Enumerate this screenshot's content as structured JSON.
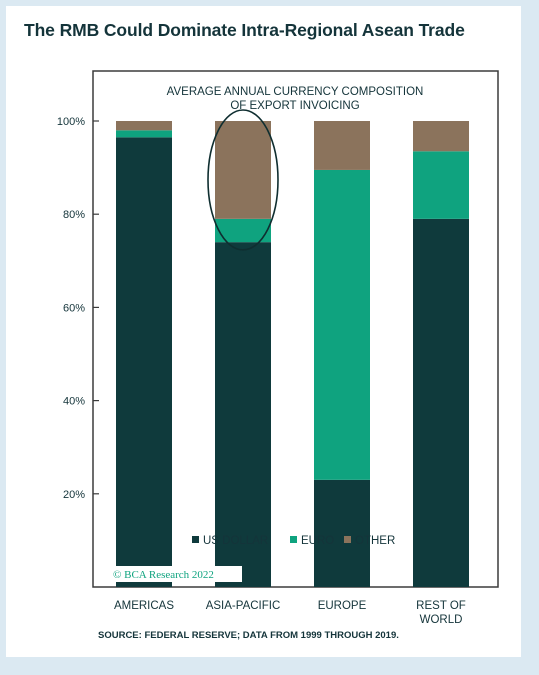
{
  "headline": "The RMB Could Dominate Intra-Regional Asean Trade",
  "source": "SOURCE: FEDERAL RESERVE; DATA FROM 1999 THROUGH 2019.",
  "watermark": "© BCA Research 2022",
  "colors": {
    "us_dollar": "#0f3a3c",
    "euro": "#0fa37f",
    "other": "#8b735c",
    "text": "#14343a",
    "background": "#dbe9f2"
  },
  "chart_data": {
    "type": "bar",
    "stacked": true,
    "title": "AVERAGE ANNUAL CURRENCY COMPOSITION",
    "subtitle": "OF EXPORT INVOICING",
    "categories": [
      [
        "AMERICAS"
      ],
      [
        "ASIA-PACIFIC"
      ],
      [
        "EUROPE"
      ],
      [
        "REST OF",
        "WORLD"
      ]
    ],
    "series": [
      {
        "name": "US DOLLAR",
        "color": "#0f3a3c",
        "values": [
          96.5,
          74,
          23,
          79
        ]
      },
      {
        "name": "EURO",
        "color": "#0fa37f",
        "values": [
          1.5,
          5,
          66.5,
          14.5
        ]
      },
      {
        "name": "OTHER",
        "color": "#8b735c",
        "values": [
          2,
          21,
          10.5,
          6.5
        ]
      }
    ],
    "yticks": [
      20,
      40,
      60,
      80,
      100
    ],
    "ytick_labels": [
      "20%",
      "40%",
      "60%",
      "80%",
      "100%"
    ],
    "ylim": [
      0,
      100
    ],
    "grid": false,
    "legend_position": "bottom-inside",
    "annotation": {
      "type": "ellipse",
      "category": "ASIA-PACIFIC",
      "series": "OTHER"
    }
  }
}
